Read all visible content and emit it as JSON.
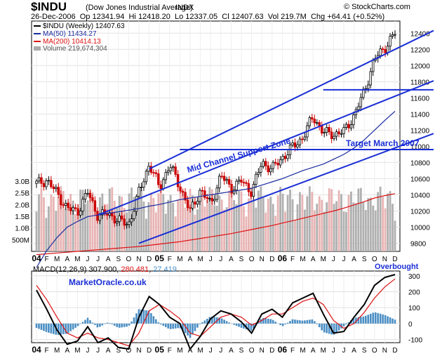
{
  "header": {
    "ticker": "$INDU",
    "subtitle": "(Dow Jones Industrial Average)",
    "exchange": "INDX",
    "watermark": "© StockCharts.com",
    "quote": [
      {
        "label": "26-Dec-2006",
        "value": ""
      },
      {
        "label": "Op",
        "value": "12341.94"
      },
      {
        "label": "Hi",
        "value": "12418.20"
      },
      {
        "label": "Lo",
        "value": "12337.05"
      },
      {
        "label": "Cl",
        "value": "12407.63"
      },
      {
        "label": "Vol",
        "value": "219.7M"
      },
      {
        "label": "Chg",
        "value": "+64.41 (+0.52%)"
      }
    ]
  },
  "legend": [
    {
      "text": "$INDU (Weekly) 12407.63",
      "color": "#000000"
    },
    {
      "text": "MA(50) 11434.27",
      "color": "#1a2b9e"
    },
    {
      "text": "MA(200) 10414.13",
      "color": "#dd1111"
    },
    {
      "text": "Volume 219,674,304",
      "color": "#999999"
    }
  ],
  "annotations": {
    "mid_channel": "Mid Channel Support Zone",
    "target": "Target March 2007",
    "site": "MarketOracle.co.uk",
    "overbought": "Overbought"
  },
  "macd_label": {
    "name": "MACD(12,26,9)",
    "macd": "307.900",
    "signal": "280.481",
    "hist": "27.419"
  },
  "colors": {
    "up_bar": "#000000",
    "down_bar": "#cc0000",
    "ma50": "#1a2b9e",
    "ma200": "#dd1111",
    "trend": "#1a2fd6",
    "volume_up": "#b0b0b0",
    "volume_down": "#e8b4b4",
    "histogram": "#4a8ec4",
    "macd_line": "#000000",
    "signal_line": "#dd1111"
  },
  "chart_data": [
    {
      "type": "candlestick",
      "title": "$INDU (Dow Jones Industrial Average) Weekly",
      "x_range": [
        "2004-01",
        "2006-12"
      ],
      "ylim": [
        9700,
        12550
      ],
      "y_ticks": [
        9800,
        10000,
        10200,
        10400,
        10600,
        10800,
        11000,
        11200,
        11400,
        11600,
        11800,
        12000,
        12200,
        12400
      ],
      "volume_ticks": [
        {
          "label": "3.0B",
          "value": 3.0
        },
        {
          "label": "2.5B",
          "value": 2.5
        },
        {
          "label": "2.0B",
          "value": 2.0
        },
        {
          "label": "1.5B",
          "value": 1.5
        },
        {
          "label": "1.0B",
          "value": 1.0
        },
        {
          "label": "500M",
          "value": 0.5
        }
      ],
      "x_tick_labels": [
        "04",
        "F",
        "M",
        "A",
        "M",
        "J",
        "J",
        "A",
        "S",
        "O",
        "N",
        "D",
        "05",
        "F",
        "M",
        "A",
        "M",
        "J",
        "J",
        "A",
        "S",
        "O",
        "N",
        "D",
        "06",
        "F",
        "M",
        "A",
        "M",
        "J",
        "J",
        "A",
        "S",
        "O",
        "N",
        "D"
      ],
      "monthly_close": [
        10540,
        10580,
        10420,
        10230,
        10190,
        10430,
        10140,
        10170,
        10080,
        10030,
        10430,
        10780,
        10490,
        10770,
        10500,
        10190,
        10460,
        10280,
        10640,
        10480,
        10570,
        10440,
        10800,
        10720,
        10860,
        10990,
        11110,
        11370,
        11170,
        11150,
        11180,
        11380,
        11680,
        12080,
        12220,
        12400
      ],
      "ma50_monthly": [
        9500,
        9710,
        9870,
        10000,
        10070,
        10130,
        10150,
        10170,
        10190,
        10210,
        10230,
        10260,
        10280,
        10310,
        10340,
        10360,
        10380,
        10400,
        10420,
        10440,
        10460,
        10480,
        10520,
        10560,
        10600,
        10650,
        10700,
        10740,
        10780,
        10840,
        10900,
        10980,
        11080,
        11200,
        11320,
        11434.27
      ],
      "ma200_monthly": [
        9660,
        9670,
        9680,
        9690,
        9700,
        9710,
        9720,
        9730,
        9740,
        9750,
        9760,
        9775,
        9790,
        9805,
        9820,
        9840,
        9860,
        9880,
        9900,
        9920,
        9945,
        9970,
        9995,
        10020,
        10050,
        10080,
        10110,
        10140,
        10170,
        10200,
        10235,
        10275,
        10315,
        10360,
        10390,
        10414.13
      ],
      "macd_monthly": [
        210,
        90,
        -40,
        -130,
        -110,
        -20,
        -120,
        -90,
        -150,
        -160,
        40,
        170,
        120,
        40,
        0,
        -160,
        -80,
        30,
        80,
        60,
        10,
        -60,
        60,
        90,
        40,
        130,
        160,
        190,
        60,
        -60,
        -50,
        40,
        120,
        240,
        290,
        307.9
      ],
      "signal_monthly": [
        240,
        150,
        40,
        -60,
        -90,
        -60,
        -90,
        -100,
        -120,
        -140,
        -60,
        80,
        120,
        80,
        30,
        -60,
        -80,
        -20,
        40,
        60,
        40,
        -10,
        20,
        60,
        60,
        100,
        140,
        160,
        120,
        20,
        -30,
        0,
        70,
        160,
        230,
        280.481
      ],
      "macd_ylim": [
        -120,
        330
      ],
      "macd_ticks": [
        300,
        200,
        100,
        0,
        -100
      ],
      "trendlines": [
        {
          "name": "upper channel",
          "from": [
            "2004-12",
            10720
          ],
          "to": [
            "2006-12",
            12200
          ]
        },
        {
          "name": "mid channel",
          "from": [
            "2004-07",
            10150
          ],
          "to": [
            "2006-12",
            11620
          ]
        },
        {
          "name": "lower channel",
          "from": [
            "2004-11",
            9800
          ],
          "to": [
            "2006-12",
            10980
          ]
        },
        {
          "name": "resistance 2006 high",
          "from": [
            "2006-05",
            11700
          ],
          "to": [
            "2006-12",
            11700
          ]
        },
        {
          "name": "mid channel support",
          "from": [
            "2005-03",
            10960
          ],
          "to": [
            "2006-12",
            10960
          ]
        }
      ]
    }
  ]
}
